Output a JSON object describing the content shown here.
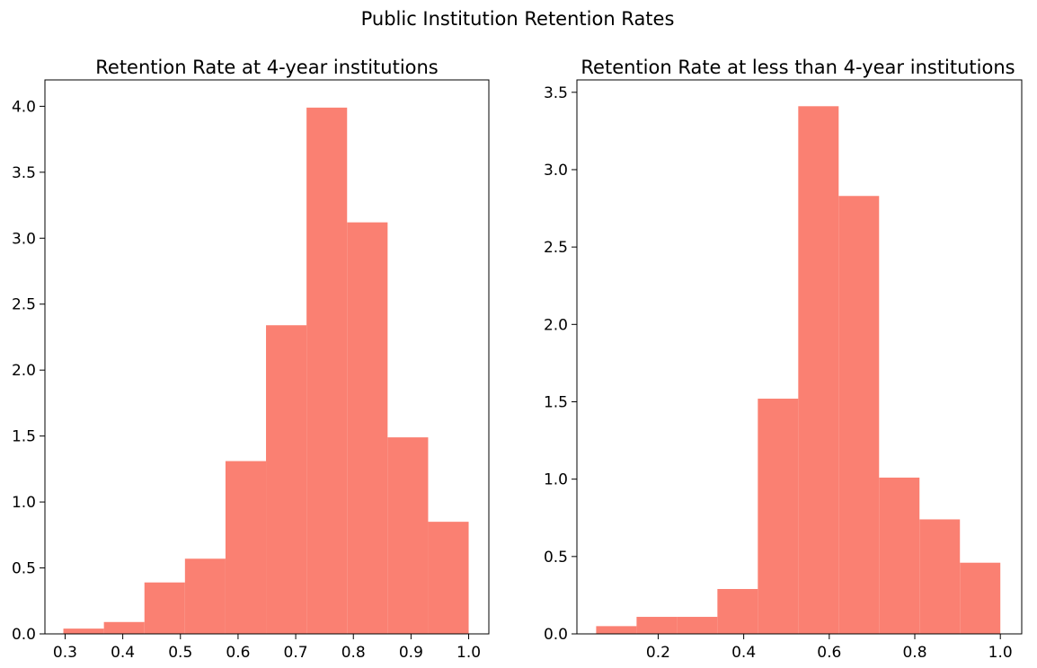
{
  "figure": {
    "suptitle": "Public Institution Retention Rates",
    "bar_color": "#fa8072"
  },
  "chart_data": [
    {
      "type": "bar",
      "subtype": "histogram",
      "title": "Retention Rate at 4-year institutions",
      "xlabel": "",
      "ylabel": "",
      "xlim": [
        0.265,
        1.035
      ],
      "ylim": [
        0,
        4.2
      ],
      "xticks": [
        0.3,
        0.4,
        0.5,
        0.6,
        0.7,
        0.8,
        0.9,
        1.0
      ],
      "xtick_labels": [
        "0.3",
        "0.4",
        "0.5",
        "0.6",
        "0.7",
        "0.8",
        "0.9",
        "1.0"
      ],
      "yticks": [
        0,
        0.5,
        1.0,
        1.5,
        2.0,
        2.5,
        3.0,
        3.5,
        4.0
      ],
      "ytick_labels": [
        "0.0",
        "0.5",
        "1.0",
        "1.5",
        "2.0",
        "2.5",
        "3.0",
        "3.5",
        "4.0"
      ],
      "bin_edges": [
        0.297,
        0.3673,
        0.4376,
        0.5079,
        0.5782,
        0.6485,
        0.7188,
        0.7891,
        0.8594,
        0.9297,
        1.0
      ],
      "values": [
        0.04,
        0.09,
        0.39,
        0.57,
        1.31,
        2.34,
        3.99,
        3.12,
        1.49,
        0.85
      ],
      "grid": false,
      "legend": "none"
    },
    {
      "type": "bar",
      "subtype": "histogram",
      "title": "Retention Rate at less than 4-year institutions",
      "xlabel": "",
      "ylabel": "",
      "xlim": [
        0.01,
        1.05
      ],
      "ylim": [
        0,
        3.58
      ],
      "xticks": [
        0.2,
        0.4,
        0.6,
        0.8,
        1.0
      ],
      "xtick_labels": [
        "0.2",
        "0.4",
        "0.6",
        "0.8",
        "1.0"
      ],
      "yticks": [
        0,
        0.5,
        1.0,
        1.5,
        2.0,
        2.5,
        3.0,
        3.5
      ],
      "ytick_labels": [
        "0.0",
        "0.5",
        "1.0",
        "1.5",
        "2.0",
        "2.5",
        "3.0",
        "3.5"
      ],
      "bin_edges": [
        0.055,
        0.1495,
        0.244,
        0.3385,
        0.433,
        0.5275,
        0.622,
        0.7165,
        0.811,
        0.9055,
        1.0
      ],
      "values": [
        0.05,
        0.11,
        0.11,
        0.29,
        1.52,
        3.41,
        2.83,
        1.01,
        0.74,
        0.46
      ],
      "grid": false,
      "legend": "none"
    }
  ]
}
